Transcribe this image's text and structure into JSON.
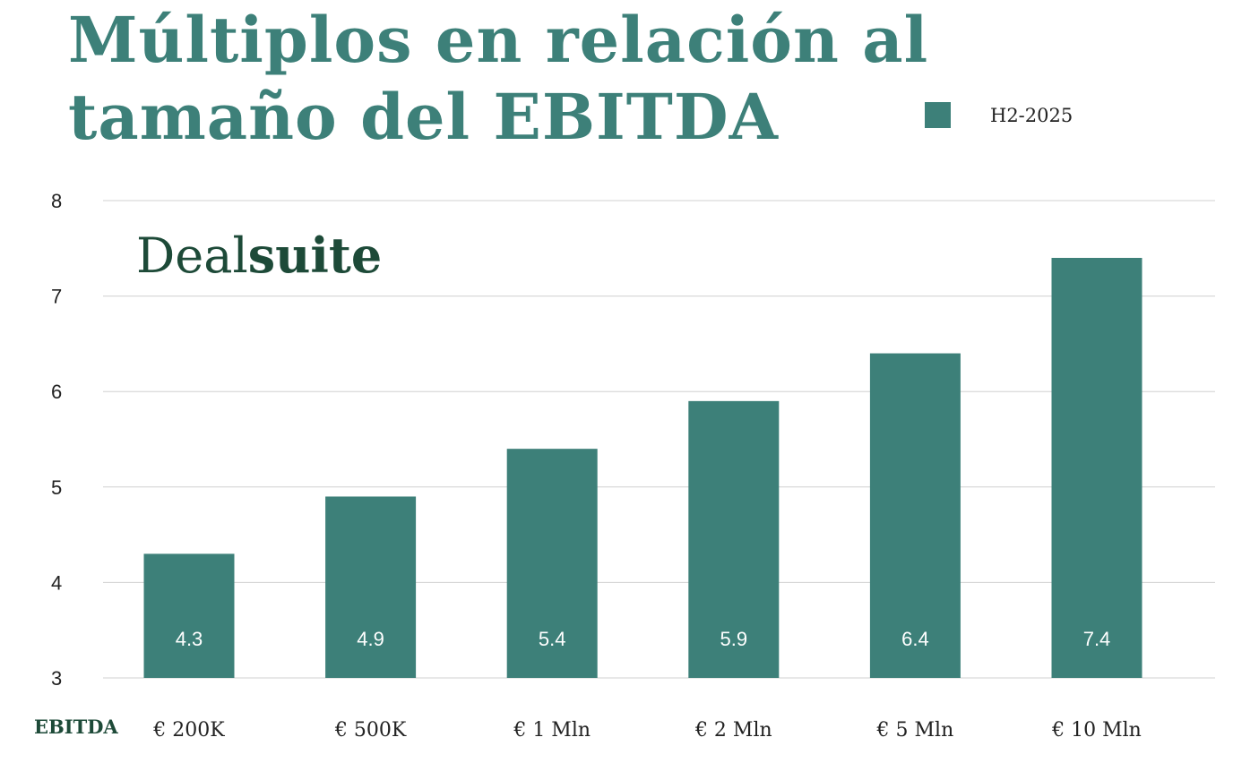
{
  "title_line1": "Múltiplos en relación al",
  "title_line2": "tamaño del EBITDA",
  "logo": {
    "part1": "Deal",
    "part2": "suite"
  },
  "colors": {
    "bar": "#3d8079",
    "title": "#3d8079",
    "grid": "#d0d0d0",
    "logo": "#1d4a38"
  },
  "chart_data": {
    "type": "bar",
    "title": "Múltiplos en relación al tamaño del EBITDA",
    "xlabel": "EBITDA",
    "ylabel": "",
    "categories": [
      "€ 200K",
      "€ 500K",
      "€ 1 Mln",
      "€ 2 Mln",
      "€ 5 Mln",
      "€ 10 Mln"
    ],
    "series": [
      {
        "name": "H2-2025",
        "values": [
          4.3,
          4.9,
          5.4,
          5.9,
          6.4,
          7.4
        ],
        "labels": [
          "4.3",
          "4.9",
          "5.4",
          "5.9",
          "6.4",
          "7.4"
        ]
      }
    ],
    "ylim": [
      3,
      8
    ],
    "yticks": [
      3,
      4,
      5,
      6,
      7,
      8
    ],
    "grid": true,
    "legend_position": "top-right"
  }
}
